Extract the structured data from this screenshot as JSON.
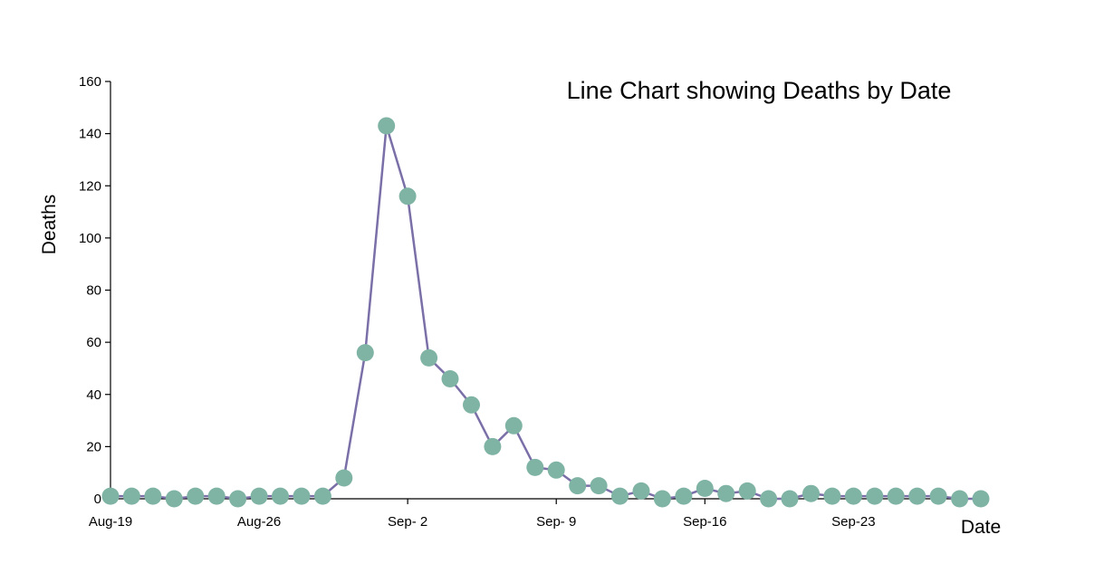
{
  "chart_data": {
    "type": "line",
    "title": "Line Chart showing Deaths by Date",
    "xlabel": "Date",
    "ylabel": "Deaths",
    "ylim": [
      0,
      160
    ],
    "yticks": [
      0,
      20,
      40,
      60,
      80,
      100,
      120,
      140,
      160
    ],
    "xlim": [
      "1854-08-19",
      "1854-09-29"
    ],
    "xticks": [
      {
        "date": "1854-08-19",
        "label": "Aug-19"
      },
      {
        "date": "1854-08-26",
        "label": "Aug-26"
      },
      {
        "date": "1854-09-02",
        "label": "Sep- 2"
      },
      {
        "date": "1854-09-09",
        "label": "Sep- 9"
      },
      {
        "date": "1854-09-16",
        "label": "Sep-16"
      },
      {
        "date": "1854-09-23",
        "label": "Sep-23"
      }
    ],
    "x": [
      "1854-08-19",
      "1854-08-20",
      "1854-08-21",
      "1854-08-22",
      "1854-08-23",
      "1854-08-24",
      "1854-08-25",
      "1854-08-26",
      "1854-08-27",
      "1854-08-28",
      "1854-08-29",
      "1854-08-30",
      "1854-08-31",
      "1854-09-01",
      "1854-09-02",
      "1854-09-03",
      "1854-09-04",
      "1854-09-05",
      "1854-09-06",
      "1854-09-07",
      "1854-09-08",
      "1854-09-09",
      "1854-09-10",
      "1854-09-11",
      "1854-09-12",
      "1854-09-13",
      "1854-09-14",
      "1854-09-15",
      "1854-09-16",
      "1854-09-17",
      "1854-09-18",
      "1854-09-19",
      "1854-09-20",
      "1854-09-21",
      "1854-09-22",
      "1854-09-23",
      "1854-09-24",
      "1854-09-25",
      "1854-09-26",
      "1854-09-27",
      "1854-09-28",
      "1854-09-29"
    ],
    "values": [
      1,
      1,
      1,
      0,
      1,
      1,
      0,
      1,
      1,
      1,
      1,
      8,
      56,
      143,
      116,
      54,
      46,
      36,
      20,
      28,
      12,
      11,
      5,
      5,
      1,
      3,
      0,
      1,
      4,
      2,
      3,
      0,
      0,
      2,
      1,
      1,
      1,
      1,
      1,
      1,
      0,
      0
    ],
    "grid": false,
    "line_color": "#7b6fa8",
    "marker_color": "#7fb3a4"
  }
}
